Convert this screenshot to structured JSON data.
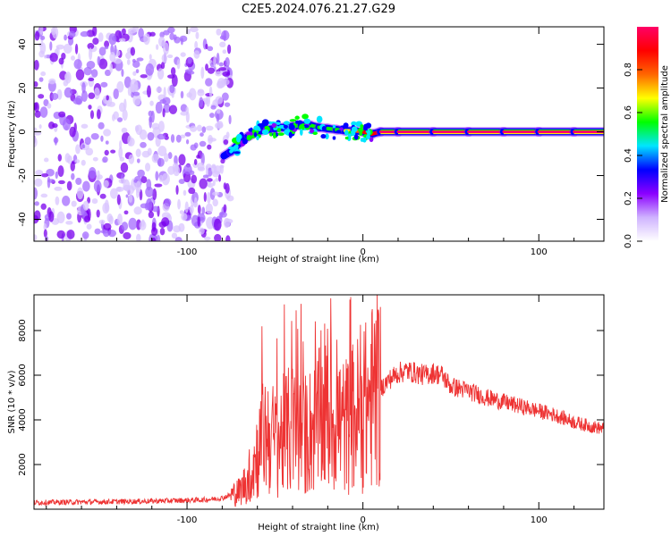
{
  "title": "C2E5.2024.076.21.27.G29",
  "chart_data": [
    {
      "type": "heatmap",
      "xlabel": "Height of straight line (km)",
      "ylabel": "Frequency (Hz)",
      "xlim": [
        -187,
        137
      ],
      "ylim": [
        -50,
        48
      ],
      "x_ticks": [
        -100,
        0,
        100
      ],
      "y_ticks": [
        -40,
        -20,
        0,
        20,
        40
      ],
      "noise_region_x": [
        -187,
        -75
      ],
      "trace": {
        "x": [
          -79,
          -75,
          -70,
          -65,
          -60,
          -55,
          -50,
          -45,
          -40,
          -35,
          -30,
          -25,
          -20,
          -15,
          -10,
          -5,
          0,
          5,
          10,
          20,
          40,
          60,
          80,
          100,
          120,
          137
        ],
        "y": [
          -11,
          -9,
          -5,
          -2,
          0,
          1,
          1.5,
          2,
          2.5,
          3,
          3,
          2,
          1.5,
          1,
          0.5,
          0.5,
          0,
          -1,
          0,
          0,
          0,
          0,
          0,
          0,
          0,
          0
        ],
        "amplitude": [
          0.35,
          0.4,
          0.3,
          0.25,
          0.3,
          0.35,
          0.4,
          0.45,
          0.5,
          0.5,
          0.55,
          0.5,
          0.55,
          0.6,
          0.65,
          0.75,
          0.9,
          0.9,
          0.95,
          0.95,
          0.95,
          0.95,
          0.95,
          0.95,
          0.95,
          0.95
        ]
      },
      "colorbar": {
        "label": "Normalized spectral amplitude",
        "range": [
          0,
          1
        ],
        "ticks": [
          "0.0",
          "0.2",
          "0.4",
          "0.6",
          "0.8"
        ],
        "colors": [
          "#ffffff",
          "#cfb3ff",
          "#8b00ff",
          "#0000ff",
          "#00e5ff",
          "#00ff00",
          "#ffff00",
          "#ff6600",
          "#ff0000",
          "#ff0066"
        ]
      }
    },
    {
      "type": "line",
      "xlabel": "Height of straight line (km)",
      "ylabel": "SNR (10 * v/v)",
      "xlim": [
        -187,
        137
      ],
      "ylim": [
        0,
        9600
      ],
      "x_ticks": [
        -100,
        0,
        100
      ],
      "y_ticks": [
        2000,
        4000,
        6000,
        8000
      ],
      "color": "#ee3333",
      "series": [
        {
          "x": [
            -187,
            -150,
            -120,
            -90,
            -80,
            -70,
            -65,
            -60,
            -55,
            -50,
            -45,
            -40,
            -35,
            -30,
            -25,
            -20,
            -15,
            -10,
            -5,
            0,
            5,
            10,
            15,
            20,
            25,
            30,
            35,
            40,
            45,
            50,
            55,
            60,
            70,
            80,
            90,
            100,
            110,
            120,
            130,
            137
          ],
          "values": [
            300,
            330,
            360,
            420,
            500,
            800,
            1400,
            2500,
            3500,
            3000,
            3300,
            3600,
            3200,
            3500,
            3900,
            4200,
            4000,
            3700,
            4200,
            4400,
            5000,
            5400,
            5800,
            6100,
            6200,
            6100,
            6000,
            6100,
            6000,
            5500,
            5400,
            5300,
            5000,
            4800,
            4600,
            4400,
            4200,
            3900,
            3700,
            3600
          ]
        }
      ]
    }
  ]
}
